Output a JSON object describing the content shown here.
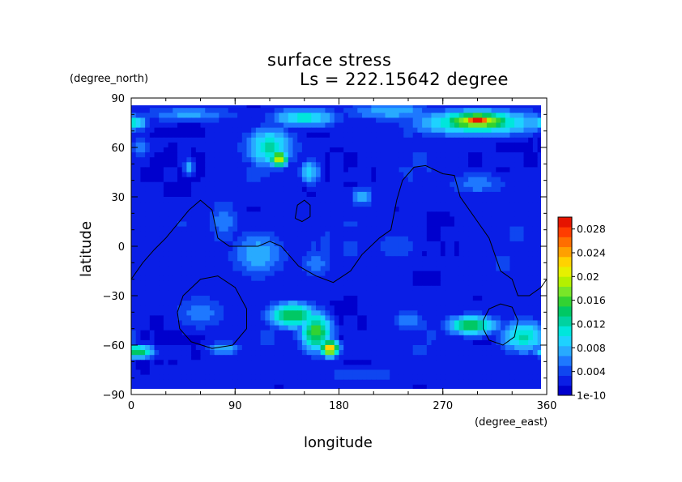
{
  "chart_data": {
    "type": "heatmap",
    "title": "surface stress",
    "subtitle": "Ls = 222.15642 degree",
    "xlabel": "longitude",
    "ylabel": "latitude",
    "x_unit": "(degree_east)",
    "y_unit": "(degree_north)",
    "xlim": [
      0,
      360
    ],
    "ylim": [
      -90,
      90
    ],
    "x_ticks": [
      "0",
      "90",
      "180",
      "270",
      "360"
    ],
    "y_ticks": [
      "90",
      "60",
      "30",
      "0",
      "−30",
      "−60",
      "−90"
    ],
    "x_tick_values": [
      0,
      90,
      180,
      270,
      360
    ],
    "y_tick_values": [
      90,
      60,
      30,
      0,
      -30,
      -60,
      -90
    ],
    "colorbar": {
      "min": 0,
      "max": 0.03,
      "tick_labels": [
        "0.028",
        "0.024",
        "0.02",
        "0.016",
        "0.012",
        "0.008",
        "0.004",
        "1e-10"
      ],
      "tick_values": [
        0.028,
        0.024,
        0.02,
        0.016,
        0.012,
        0.008,
        0.004,
        0.0
      ],
      "colors": [
        "#0000cd",
        "#0a1ee6",
        "#0f46f0",
        "#1e78ff",
        "#28aaff",
        "#1ed2ff",
        "#00e6dc",
        "#00d2a0",
        "#00c864",
        "#32d232",
        "#78e628",
        "#b4f000",
        "#e6f000",
        "#ffd200",
        "#ffa000",
        "#ff6e00",
        "#ff3c00",
        "#e61400"
      ]
    },
    "blobs": [
      {
        "lon": 0,
        "lat": 75,
        "rlon": 14,
        "rlat": 5,
        "v": 0.012
      },
      {
        "lon": 8,
        "lat": 60,
        "rlon": 12,
        "rlat": 6,
        "v": 0.006
      },
      {
        "lon": 50,
        "lat": 80,
        "rlon": 45,
        "rlat": 5,
        "v": 0.007
      },
      {
        "lon": 150,
        "lat": 78,
        "rlon": 30,
        "rlat": 6,
        "v": 0.011
      },
      {
        "lon": 120,
        "lat": 60,
        "rlon": 22,
        "rlat": 12,
        "v": 0.012
      },
      {
        "lon": 128,
        "lat": 53,
        "rlon": 8,
        "rlat": 5,
        "v": 0.02
      },
      {
        "lon": 225,
        "lat": 82,
        "rlon": 40,
        "rlat": 6,
        "v": 0.008
      },
      {
        "lon": 300,
        "lat": 75,
        "rlon": 55,
        "rlat": 8,
        "v": 0.014
      },
      {
        "lon": 300,
        "lat": 76,
        "rlon": 32,
        "rlat": 6,
        "v": 0.021
      },
      {
        "lon": 300,
        "lat": 76,
        "rlon": 15,
        "rlat": 3,
        "v": 0.03
      },
      {
        "lon": 50,
        "lat": 48,
        "rlon": 6,
        "rlat": 5,
        "v": 0.008
      },
      {
        "lon": 155,
        "lat": 45,
        "rlon": 10,
        "rlat": 8,
        "v": 0.009
      },
      {
        "lon": 200,
        "lat": 30,
        "rlon": 10,
        "rlat": 6,
        "v": 0.008
      },
      {
        "lon": 300,
        "lat": 38,
        "rlon": 28,
        "rlat": 8,
        "v": 0.006
      },
      {
        "lon": 80,
        "lat": 15,
        "rlon": 15,
        "rlat": 15,
        "v": 0.006
      },
      {
        "lon": 110,
        "lat": -5,
        "rlon": 25,
        "rlat": 15,
        "v": 0.008
      },
      {
        "lon": 160,
        "lat": -10,
        "rlon": 15,
        "rlat": 10,
        "v": 0.006
      },
      {
        "lon": 230,
        "lat": 0,
        "rlon": 22,
        "rlat": 10,
        "v": 0.005
      },
      {
        "lon": 60,
        "lat": -40,
        "rlon": 25,
        "rlat": 12,
        "v": 0.006
      },
      {
        "lon": 140,
        "lat": -42,
        "rlon": 22,
        "rlat": 8,
        "v": 0.015
      },
      {
        "lon": 160,
        "lat": -52,
        "rlon": 14,
        "rlat": 12,
        "v": 0.016
      },
      {
        "lon": 172,
        "lat": -62,
        "rlon": 8,
        "rlat": 5,
        "v": 0.024
      },
      {
        "lon": 295,
        "lat": -48,
        "rlon": 22,
        "rlat": 6,
        "v": 0.015
      },
      {
        "lon": 340,
        "lat": -55,
        "rlon": 20,
        "rlat": 10,
        "v": 0.012
      },
      {
        "lon": 5,
        "lat": -64,
        "rlon": 15,
        "rlat": 4,
        "v": 0.015
      },
      {
        "lon": 80,
        "lat": -62,
        "rlon": 18,
        "rlat": 4,
        "v": 0.008
      },
      {
        "lon": 240,
        "lat": -45,
        "rlon": 15,
        "rlat": 6,
        "v": 0.007
      },
      {
        "lon": 200,
        "lat": -78,
        "rlon": 40,
        "rlat": 6,
        "v": 0.005
      }
    ],
    "contours": [
      {
        "name": "continent-outline",
        "points": [
          [
            0,
            -20
          ],
          [
            10,
            -10
          ],
          [
            20,
            -2
          ],
          [
            30,
            5
          ],
          [
            50,
            22
          ],
          [
            60,
            28
          ],
          [
            70,
            22
          ],
          [
            75,
            5
          ],
          [
            85,
            0
          ],
          [
            110,
            0
          ],
          [
            120,
            3
          ],
          [
            130,
            0
          ],
          [
            145,
            -12
          ],
          [
            160,
            -18
          ],
          [
            175,
            -22
          ],
          [
            190,
            -15
          ],
          [
            200,
            -5
          ],
          [
            215,
            5
          ],
          [
            225,
            10
          ],
          [
            230,
            28
          ],
          [
            235,
            40
          ],
          [
            245,
            48
          ],
          [
            255,
            49
          ],
          [
            270,
            44
          ],
          [
            280,
            43
          ],
          [
            285,
            30
          ],
          [
            300,
            15
          ],
          [
            310,
            5
          ],
          [
            320,
            -15
          ],
          [
            330,
            -20
          ],
          [
            335,
            -30
          ],
          [
            345,
            -30
          ],
          [
            355,
            -25
          ],
          [
            360,
            -20
          ]
        ]
      },
      {
        "name": "island-outline",
        "points": [
          [
            142,
            17
          ],
          [
            144,
            25
          ],
          [
            150,
            28
          ],
          [
            155,
            25
          ],
          [
            155,
            18
          ],
          [
            148,
            15
          ],
          [
            142,
            17
          ]
        ]
      },
      {
        "name": "crater-outline-left",
        "points": [
          [
            40,
            -40
          ],
          [
            45,
            -30
          ],
          [
            60,
            -20
          ],
          [
            75,
            -18
          ],
          [
            90,
            -25
          ],
          [
            100,
            -38
          ],
          [
            100,
            -50
          ],
          [
            88,
            -60
          ],
          [
            70,
            -62
          ],
          [
            52,
            -58
          ],
          [
            42,
            -50
          ],
          [
            40,
            -40
          ]
        ]
      },
      {
        "name": "crater-outline-right",
        "points": [
          [
            305,
            -45
          ],
          [
            310,
            -38
          ],
          [
            320,
            -35
          ],
          [
            330,
            -37
          ],
          [
            335,
            -45
          ],
          [
            332,
            -55
          ],
          [
            322,
            -60
          ],
          [
            310,
            -57
          ],
          [
            305,
            -50
          ],
          [
            305,
            -45
          ]
        ]
      }
    ]
  }
}
